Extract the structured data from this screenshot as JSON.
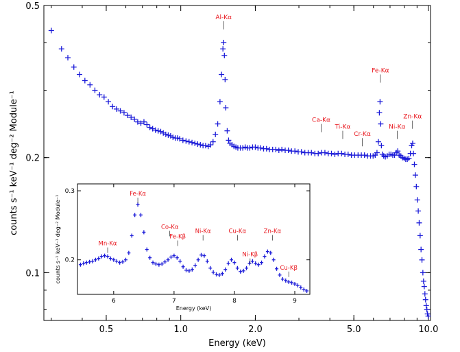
{
  "colors": {
    "data": "#1a1ad8",
    "label": "#e8131a",
    "axes": "#000000"
  },
  "chart_data": [
    {
      "type": "scatter",
      "title": "",
      "xlabel": "Energy (keV)",
      "ylabel": "counts s⁻¹ keV⁻¹ deg⁻² Module⁻¹",
      "xscale": "log",
      "yscale": "log",
      "xlim": [
        0.28,
        10.2
      ],
      "ylim": [
        0.075,
        0.5
      ],
      "grid": false,
      "legend": "none",
      "x_tick_labels": [
        {
          "value": 0.5,
          "label": "0.5"
        },
        {
          "value": 1.0,
          "label": "1.0"
        },
        {
          "value": 2.0,
          "label": "2.0"
        },
        {
          "value": 5.0,
          "label": "5.0"
        },
        {
          "value": 10.0,
          "label": "10.0"
        }
      ],
      "y_tick_labels": [
        {
          "value": 0.1,
          "label": "0.1"
        },
        {
          "value": 0.2,
          "label": "0.2"
        },
        {
          "value": 0.5,
          "label": "0.5"
        }
      ],
      "line_labels": [
        {
          "label": "Al-Kα",
          "energy": 1.49,
          "y": 0.455
        },
        {
          "label": "Ca-Kα",
          "energy": 3.69,
          "y": 0.245
        },
        {
          "label": "Ti-Kα",
          "energy": 4.51,
          "y": 0.235
        },
        {
          "label": "Cr-Kα",
          "energy": 5.41,
          "y": 0.225
        },
        {
          "label": "Fe-Kα",
          "energy": 6.4,
          "y": 0.33
        },
        {
          "label": "Ni-Kα",
          "energy": 7.48,
          "y": 0.235
        },
        {
          "label": "Zn-Kα",
          "energy": 8.63,
          "y": 0.25
        }
      ],
      "series": [
        {
          "x": [
            0.3,
            0.33,
            0.35,
            0.37,
            0.39,
            0.41,
            0.43,
            0.45,
            0.47,
            0.49,
            0.51,
            0.53,
            0.55,
            0.57,
            0.59,
            0.61,
            0.63,
            0.65,
            0.67,
            0.69,
            0.71,
            0.73,
            0.75,
            0.77,
            0.79,
            0.81,
            0.83,
            0.85,
            0.87,
            0.89,
            0.91,
            0.93,
            0.95,
            0.97,
            0.99,
            1.02,
            1.05,
            1.08,
            1.11,
            1.14,
            1.17,
            1.2,
            1.23,
            1.26,
            1.29,
            1.32,
            1.35,
            1.38,
            1.41,
            1.44,
            1.46,
            1.48,
            1.49,
            1.5,
            1.51,
            1.52,
            1.54,
            1.56,
            1.58,
            1.61,
            1.64,
            1.67,
            1.7,
            1.74,
            1.78,
            1.82,
            1.86,
            1.9,
            1.95,
            2.0,
            2.05,
            2.1,
            2.16,
            2.22,
            2.28,
            2.35,
            2.42,
            2.49,
            2.56,
            2.64,
            2.72,
            2.8,
            2.89,
            2.98,
            3.07,
            3.17,
            3.27,
            3.37,
            3.48,
            3.59,
            3.7,
            3.82,
            3.94,
            4.06,
            4.19,
            4.32,
            4.46,
            4.6,
            4.74,
            4.89,
            5.04,
            5.2,
            5.36,
            5.52,
            5.68,
            5.84,
            5.98,
            6.1,
            6.2,
            6.28,
            6.34,
            6.38,
            6.42,
            6.46,
            6.52,
            6.6,
            6.7,
            6.82,
            6.94,
            7.06,
            7.18,
            7.3,
            7.42,
            7.52,
            7.62,
            7.74,
            7.86,
            7.98,
            8.1,
            8.22,
            8.34,
            8.46,
            8.56,
            8.64,
            8.7,
            8.78,
            8.86,
            8.94,
            9.02,
            9.1,
            9.18,
            9.26,
            9.34,
            9.42,
            9.5,
            9.56,
            9.62,
            9.68,
            9.74,
            9.8,
            9.86,
            9.92,
            9.98
          ],
          "y": [
            0.43,
            0.385,
            0.365,
            0.345,
            0.33,
            0.318,
            0.31,
            0.3,
            0.292,
            0.288,
            0.28,
            0.272,
            0.268,
            0.265,
            0.262,
            0.258,
            0.255,
            0.252,
            0.248,
            0.246,
            0.248,
            0.244,
            0.24,
            0.238,
            0.236,
            0.235,
            0.234,
            0.232,
            0.23,
            0.229,
            0.228,
            0.226,
            0.225,
            0.225,
            0.224,
            0.222,
            0.221,
            0.22,
            0.219,
            0.218,
            0.217,
            0.216,
            0.215,
            0.215,
            0.214,
            0.216,
            0.22,
            0.23,
            0.245,
            0.28,
            0.33,
            0.385,
            0.4,
            0.37,
            0.32,
            0.27,
            0.235,
            0.222,
            0.218,
            0.216,
            0.214,
            0.213,
            0.212,
            0.212,
            0.212,
            0.213,
            0.212,
            0.212,
            0.213,
            0.213,
            0.212,
            0.212,
            0.211,
            0.211,
            0.21,
            0.21,
            0.21,
            0.209,
            0.21,
            0.209,
            0.209,
            0.208,
            0.208,
            0.207,
            0.207,
            0.206,
            0.206,
            0.206,
            0.205,
            0.205,
            0.206,
            0.206,
            0.205,
            0.205,
            0.204,
            0.205,
            0.205,
            0.204,
            0.204,
            0.203,
            0.203,
            0.203,
            0.203,
            0.203,
            0.202,
            0.202,
            0.202,
            0.203,
            0.206,
            0.22,
            0.262,
            0.28,
            0.245,
            0.215,
            0.204,
            0.202,
            0.201,
            0.202,
            0.204,
            0.204,
            0.203,
            0.203,
            0.206,
            0.208,
            0.203,
            0.202,
            0.2,
            0.199,
            0.198,
            0.198,
            0.199,
            0.205,
            0.215,
            0.218,
            0.205,
            0.192,
            0.18,
            0.168,
            0.155,
            0.145,
            0.135,
            0.125,
            0.115,
            0.108,
            0.1,
            0.095,
            0.092,
            0.088,
            0.085,
            0.082,
            0.08,
            0.078,
            0.077
          ]
        }
      ]
    },
    {
      "type": "scatter",
      "title": "",
      "xlabel": "Energy (keV)",
      "ylabel": "counts s⁻¹ keV⁻¹ deg⁻² Module⁻¹",
      "xscale": "linear",
      "yscale": "linear",
      "xlim": [
        5.4,
        9.25
      ],
      "ylim": [
        0.15,
        0.31
      ],
      "grid": false,
      "legend": "none",
      "x_tick_labels": [
        {
          "value": 6,
          "label": "6"
        },
        {
          "value": 7,
          "label": "7"
        },
        {
          "value": 8,
          "label": "8"
        },
        {
          "value": 9,
          "label": "9"
        }
      ],
      "y_tick_labels": [
        {
          "value": 0.2,
          "label": "0.2"
        },
        {
          "value": 0.3,
          "label": "0.3"
        }
      ],
      "line_labels": [
        {
          "label": "Mn-Kα",
          "energy": 5.9,
          "y": 0.218
        },
        {
          "label": "Fe-Kα",
          "energy": 6.4,
          "y": 0.29
        },
        {
          "label": "Co-Kα",
          "energy": 6.93,
          "y": 0.242
        },
        {
          "label": "Fe-Kβ",
          "energy": 7.06,
          "y": 0.228
        },
        {
          "label": "Ni-Kα",
          "energy": 7.48,
          "y": 0.236
        },
        {
          "label": "Cu-Kα",
          "energy": 8.05,
          "y": 0.236
        },
        {
          "label": "Ni-Kβ",
          "energy": 8.26,
          "y": 0.202
        },
        {
          "label": "Zn-Kα",
          "energy": 8.63,
          "y": 0.236
        },
        {
          "label": "Cu-Kβ",
          "energy": 8.9,
          "y": 0.183
        }
      ],
      "series": [
        {
          "x": [
            5.45,
            5.5,
            5.55,
            5.6,
            5.65,
            5.7,
            5.75,
            5.8,
            5.85,
            5.9,
            5.95,
            6.0,
            6.05,
            6.1,
            6.15,
            6.2,
            6.25,
            6.3,
            6.35,
            6.4,
            6.45,
            6.5,
            6.55,
            6.6,
            6.65,
            6.7,
            6.75,
            6.8,
            6.85,
            6.9,
            6.95,
            7.0,
            7.05,
            7.1,
            7.15,
            7.2,
            7.25,
            7.3,
            7.35,
            7.4,
            7.45,
            7.5,
            7.55,
            7.6,
            7.65,
            7.7,
            7.75,
            7.8,
            7.85,
            7.9,
            7.95,
            8.0,
            8.05,
            8.1,
            8.15,
            8.2,
            8.25,
            8.3,
            8.35,
            8.4,
            8.45,
            8.5,
            8.55,
            8.6,
            8.65,
            8.7,
            8.75,
            8.8,
            8.85,
            8.9,
            8.95,
            9.0,
            9.05,
            9.1,
            9.15,
            9.2
          ],
          "y": [
            0.193,
            0.195,
            0.196,
            0.197,
            0.198,
            0.2,
            0.202,
            0.205,
            0.206,
            0.205,
            0.202,
            0.2,
            0.198,
            0.196,
            0.197,
            0.2,
            0.21,
            0.235,
            0.265,
            0.28,
            0.265,
            0.24,
            0.215,
            0.203,
            0.196,
            0.194,
            0.193,
            0.194,
            0.197,
            0.2,
            0.204,
            0.206,
            0.203,
            0.198,
            0.19,
            0.185,
            0.184,
            0.186,
            0.192,
            0.2,
            0.207,
            0.206,
            0.198,
            0.188,
            0.182,
            0.179,
            0.178,
            0.18,
            0.186,
            0.195,
            0.2,
            0.196,
            0.188,
            0.183,
            0.184,
            0.188,
            0.195,
            0.198,
            0.195,
            0.193,
            0.196,
            0.205,
            0.212,
            0.21,
            0.2,
            0.187,
            0.178,
            0.172,
            0.17,
            0.168,
            0.167,
            0.165,
            0.163,
            0.16,
            0.157,
            0.155
          ]
        }
      ]
    }
  ]
}
